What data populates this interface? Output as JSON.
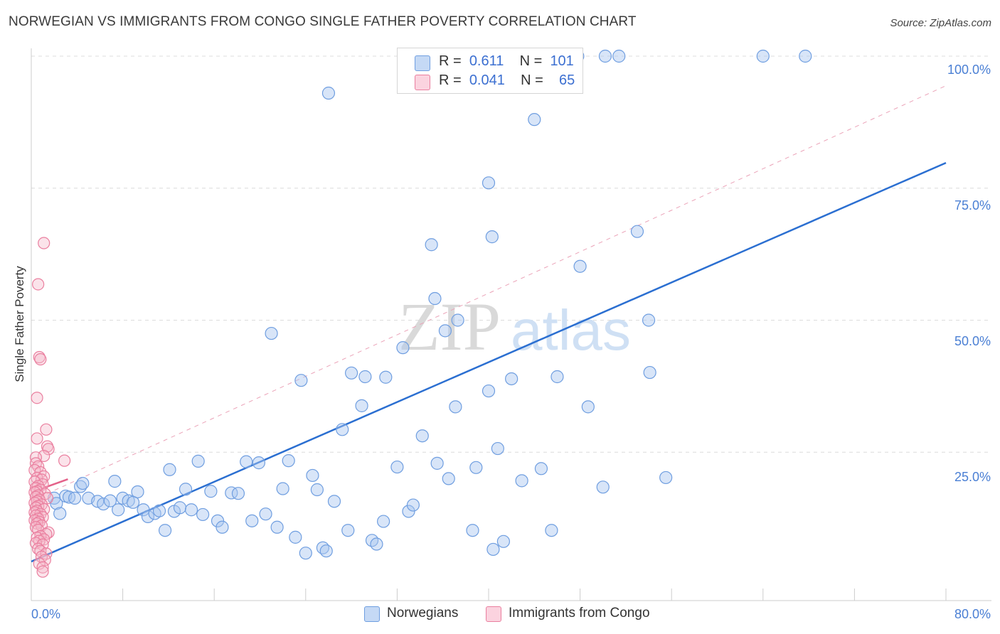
{
  "header": {
    "title": "NORWEGIAN VS IMMIGRANTS FROM CONGO SINGLE FATHER POVERTY CORRELATION CHART",
    "source": "Source: ZipAtlas.com"
  },
  "watermark": {
    "zip": "ZIP",
    "atlas": "atlas"
  },
  "legend_top": {
    "rows": [
      {
        "r_label": "R =",
        "r_value": "0.611",
        "n_label": "N =",
        "n_value": "101",
        "color": "#a9c6f0"
      },
      {
        "r_label": "R =",
        "r_value": "0.041",
        "n_label": "N =",
        "n_value": "65",
        "color": "#f6b8ca"
      }
    ]
  },
  "legend_bottom": {
    "items": [
      {
        "label": "Norwegians",
        "color": "#a9c6f0"
      },
      {
        "label": "Immigrants from Congo",
        "color": "#f6b8ca"
      }
    ]
  },
  "colors": {
    "blue_fill": "#a9c6f0",
    "blue_stroke": "#6f9ee0",
    "blue_line": "#2b6fd1",
    "pink_fill": "#f6b8ca",
    "pink_stroke": "#ea7f9f",
    "pink_line": "#e4628a",
    "grid": "#dcdcdc",
    "tick_text": "#4a7fd4"
  },
  "chart_data": {
    "type": "scatter",
    "title": "NORWEGIAN VS IMMIGRANTS FROM CONGO SINGLE FATHER POVERTY CORRELATION CHART",
    "xlabel": "",
    "ylabel": "Single Father Poverty",
    "xlim": [
      0,
      80
    ],
    "ylim": [
      0,
      100
    ],
    "x_tick_labels": [
      "0.0%",
      "80.0%"
    ],
    "y_tick_labels": [
      "25.0%",
      "50.0%",
      "75.0%",
      "100.0%"
    ],
    "y_ticks": [
      25,
      50,
      75,
      100
    ],
    "grid": true,
    "legend_position": "top-center",
    "series": [
      {
        "name": "Norwegians",
        "r": 0.611,
        "n": 101,
        "trend": {
          "x0": 0,
          "y0": 4.3,
          "x1": 80,
          "y1": 79.8
        },
        "points": [
          [
            2.0,
            16.3
          ],
          [
            2.2,
            15.3
          ],
          [
            2.5,
            13.4
          ],
          [
            3.0,
            16.7
          ],
          [
            3.3,
            16.5
          ],
          [
            3.8,
            16.3
          ],
          [
            4.3,
            18.5
          ],
          [
            4.5,
            19.1
          ],
          [
            5.0,
            16.3
          ],
          [
            5.8,
            15.7
          ],
          [
            6.3,
            15.2
          ],
          [
            6.9,
            15.8
          ],
          [
            7.3,
            19.5
          ],
          [
            7.6,
            14.1
          ],
          [
            8.0,
            16.3
          ],
          [
            8.5,
            15.8
          ],
          [
            8.9,
            15.5
          ],
          [
            9.3,
            17.5
          ],
          [
            9.8,
            14.1
          ],
          [
            10.2,
            12.8
          ],
          [
            10.8,
            13.4
          ],
          [
            11.2,
            13.9
          ],
          [
            11.7,
            10.2
          ],
          [
            12.1,
            21.7
          ],
          [
            12.5,
            13.8
          ],
          [
            13.0,
            14.5
          ],
          [
            13.5,
            18.0
          ],
          [
            14.0,
            14.1
          ],
          [
            14.6,
            23.3
          ],
          [
            15.0,
            13.2
          ],
          [
            15.7,
            17.6
          ],
          [
            16.3,
            12.0
          ],
          [
            16.7,
            10.8
          ],
          [
            17.5,
            17.3
          ],
          [
            18.1,
            17.2
          ],
          [
            18.8,
            23.2
          ],
          [
            19.3,
            12.0
          ],
          [
            19.9,
            23.0
          ],
          [
            20.5,
            13.3
          ],
          [
            21.0,
            47.5
          ],
          [
            21.5,
            10.8
          ],
          [
            22.0,
            18.1
          ],
          [
            22.5,
            23.4
          ],
          [
            23.1,
            8.9
          ],
          [
            23.6,
            38.6
          ],
          [
            24.0,
            5.9
          ],
          [
            24.6,
            20.6
          ],
          [
            25.0,
            17.9
          ],
          [
            25.5,
            6.9
          ],
          [
            25.8,
            6.3
          ],
          [
            26.5,
            15.7
          ],
          [
            27.2,
            29.3
          ],
          [
            27.7,
            10.2
          ],
          [
            28.0,
            40.0
          ],
          [
            28.9,
            33.8
          ],
          [
            29.2,
            39.3
          ],
          [
            29.8,
            8.3
          ],
          [
            30.2,
            7.6
          ],
          [
            30.8,
            11.9
          ],
          [
            31.0,
            39.2
          ],
          [
            32.0,
            22.2
          ],
          [
            32.5,
            44.8
          ],
          [
            33.0,
            13.8
          ],
          [
            33.4,
            15.0
          ],
          [
            34.2,
            28.1
          ],
          [
            35.0,
            64.3
          ],
          [
            35.3,
            54.1
          ],
          [
            35.5,
            22.9
          ],
          [
            36.2,
            48.0
          ],
          [
            36.5,
            20.0
          ],
          [
            37.1,
            33.6
          ],
          [
            37.3,
            50.0
          ],
          [
            38.6,
            10.2
          ],
          [
            38.9,
            22.1
          ],
          [
            40.0,
            36.6
          ],
          [
            40.3,
            65.8
          ],
          [
            40.4,
            6.6
          ],
          [
            40.8,
            25.7
          ],
          [
            41.3,
            8.1
          ],
          [
            42.0,
            38.9
          ],
          [
            42.9,
            19.6
          ],
          [
            44.6,
            21.9
          ],
          [
            45.5,
            10.2
          ],
          [
            46.0,
            39.3
          ],
          [
            48.0,
            60.2
          ],
          [
            48.7,
            33.6
          ],
          [
            50.0,
            18.4
          ],
          [
            53.0,
            66.8
          ],
          [
            54.0,
            50.0
          ],
          [
            54.1,
            40.1
          ],
          [
            55.5,
            20.2
          ],
          [
            38.2,
            100.0
          ],
          [
            46.0,
            100.0
          ],
          [
            47.8,
            100.0
          ],
          [
            50.2,
            100.0
          ],
          [
            51.4,
            100.0
          ],
          [
            64.0,
            100.0
          ],
          [
            67.7,
            100.0
          ],
          [
            26.0,
            93.0
          ],
          [
            44.0,
            88.0
          ],
          [
            40.0,
            76.0
          ]
        ]
      },
      {
        "name": "Immigrants from Congo",
        "r": 0.041,
        "n": 65,
        "trend": {
          "x0": 0,
          "y0": 17.4,
          "x1": 3.2,
          "y1": 19.9
        },
        "dashed_trend": {
          "x0": 0,
          "y0": 15.8,
          "x1": 80,
          "y1": 94.4
        },
        "points": [
          [
            1.1,
            64.6
          ],
          [
            0.6,
            56.8
          ],
          [
            0.7,
            43.0
          ],
          [
            0.8,
            42.6
          ],
          [
            0.5,
            35.3
          ],
          [
            1.3,
            29.3
          ],
          [
            0.5,
            27.6
          ],
          [
            1.4,
            26.1
          ],
          [
            1.5,
            25.6
          ],
          [
            1.1,
            24.3
          ],
          [
            0.4,
            24.0
          ],
          [
            2.9,
            23.4
          ],
          [
            0.4,
            22.9
          ],
          [
            0.6,
            22.3
          ],
          [
            0.3,
            21.6
          ],
          [
            0.8,
            21.2
          ],
          [
            1.1,
            20.4
          ],
          [
            0.5,
            20.1
          ],
          [
            0.9,
            19.8
          ],
          [
            0.3,
            19.4
          ],
          [
            1.0,
            18.9
          ],
          [
            0.6,
            18.6
          ],
          [
            0.4,
            18.2
          ],
          [
            0.8,
            17.9
          ],
          [
            0.5,
            17.6
          ],
          [
            0.3,
            17.4
          ],
          [
            1.2,
            17.1
          ],
          [
            0.6,
            16.8
          ],
          [
            0.4,
            16.5
          ],
          [
            1.4,
            16.3
          ],
          [
            0.7,
            16.0
          ],
          [
            0.5,
            15.7
          ],
          [
            0.3,
            15.4
          ],
          [
            0.9,
            15.1
          ],
          [
            0.6,
            14.8
          ],
          [
            0.4,
            14.5
          ],
          [
            1.1,
            14.2
          ],
          [
            0.5,
            13.9
          ],
          [
            0.3,
            13.6
          ],
          [
            0.8,
            13.3
          ],
          [
            0.4,
            13.0
          ],
          [
            1.0,
            12.7
          ],
          [
            0.6,
            12.4
          ],
          [
            0.3,
            12.1
          ],
          [
            0.7,
            11.8
          ],
          [
            0.5,
            11.5
          ],
          [
            0.9,
            11.1
          ],
          [
            0.4,
            10.8
          ],
          [
            0.6,
            10.3
          ],
          [
            1.5,
            9.8
          ],
          [
            1.3,
            9.5
          ],
          [
            0.8,
            9.1
          ],
          [
            0.5,
            8.8
          ],
          [
            1.1,
            8.5
          ],
          [
            0.7,
            8.2
          ],
          [
            0.4,
            7.8
          ],
          [
            1.0,
            7.5
          ],
          [
            0.6,
            6.7
          ],
          [
            0.8,
            6.3
          ],
          [
            1.3,
            5.8
          ],
          [
            0.9,
            5.2
          ],
          [
            1.2,
            4.6
          ],
          [
            0.7,
            3.9
          ],
          [
            1.0,
            3.2
          ],
          [
            1.0,
            2.4
          ]
        ]
      }
    ]
  }
}
